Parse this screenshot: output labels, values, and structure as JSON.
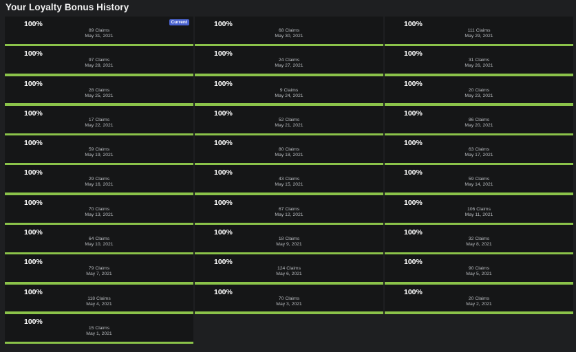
{
  "page": {
    "title": "Your Loyalty Bonus History"
  },
  "colors": {
    "background": "#1e1f21",
    "card": "#151617",
    "progress_fill": "#8bc34a",
    "badge": "#4a63d0"
  },
  "history": [
    {
      "percent": "100%",
      "claims": "89 Claims",
      "date": "May 31, 2021",
      "badge": "Current",
      "progress": 1.0
    },
    {
      "percent": "100%",
      "claims": "68 Claims",
      "date": "May 30, 2021",
      "progress": 1.0
    },
    {
      "percent": "100%",
      "claims": "111 Claims",
      "date": "May 29, 2021",
      "progress": 1.0
    },
    {
      "percent": "100%",
      "claims": "97 Claims",
      "date": "May 28, 2021",
      "progress": 1.0
    },
    {
      "percent": "100%",
      "claims": "24 Claims",
      "date": "May 27, 2021",
      "progress": 1.0
    },
    {
      "percent": "100%",
      "claims": "31 Claims",
      "date": "May 26, 2021",
      "progress": 1.0
    },
    {
      "percent": "100%",
      "claims": "28 Claims",
      "date": "May 25, 2021",
      "progress": 1.0
    },
    {
      "percent": "100%",
      "claims": "9 Claims",
      "date": "May 24, 2021",
      "progress": 1.0
    },
    {
      "percent": "100%",
      "claims": "20 Claims",
      "date": "May 23, 2021",
      "progress": 1.0
    },
    {
      "percent": "100%",
      "claims": "17 Claims",
      "date": "May 22, 2021",
      "progress": 1.0
    },
    {
      "percent": "100%",
      "claims": "52 Claims",
      "date": "May 21, 2021",
      "progress": 1.0
    },
    {
      "percent": "100%",
      "claims": "86 Claims",
      "date": "May 20, 2021",
      "progress": 1.0
    },
    {
      "percent": "100%",
      "claims": "59 Claims",
      "date": "May 19, 2021",
      "progress": 1.0
    },
    {
      "percent": "100%",
      "claims": "80 Claims",
      "date": "May 18, 2021",
      "progress": 1.0
    },
    {
      "percent": "100%",
      "claims": "63 Claims",
      "date": "May 17, 2021",
      "progress": 1.0
    },
    {
      "percent": "100%",
      "claims": "29 Claims",
      "date": "May 16, 2021",
      "progress": 1.0
    },
    {
      "percent": "100%",
      "claims": "43 Claims",
      "date": "May 15, 2021",
      "progress": 1.0
    },
    {
      "percent": "100%",
      "claims": "59 Claims",
      "date": "May 14, 2021",
      "progress": 1.0
    },
    {
      "percent": "100%",
      "claims": "70 Claims",
      "date": "May 13, 2021",
      "progress": 1.0
    },
    {
      "percent": "100%",
      "claims": "67 Claims",
      "date": "May 12, 2021",
      "progress": 1.0
    },
    {
      "percent": "100%",
      "claims": "106 Claims",
      "date": "May 11, 2021",
      "progress": 1.0
    },
    {
      "percent": "100%",
      "claims": "64 Claims",
      "date": "May 10, 2021",
      "progress": 1.0
    },
    {
      "percent": "100%",
      "claims": "18 Claims",
      "date": "May 9, 2021",
      "progress": 1.0
    },
    {
      "percent": "100%",
      "claims": "32 Claims",
      "date": "May 8, 2021",
      "progress": 1.0
    },
    {
      "percent": "100%",
      "claims": "79 Claims",
      "date": "May 7, 2021",
      "progress": 1.0
    },
    {
      "percent": "100%",
      "claims": "124 Claims",
      "date": "May 6, 2021",
      "progress": 1.0
    },
    {
      "percent": "100%",
      "claims": "90 Claims",
      "date": "May 5, 2021",
      "progress": 1.0
    },
    {
      "percent": "100%",
      "claims": "118 Claims",
      "date": "May 4, 2021",
      "progress": 1.0
    },
    {
      "percent": "100%",
      "claims": "70 Claims",
      "date": "May 3, 2021",
      "progress": 1.0
    },
    {
      "percent": "100%",
      "claims": "20 Claims",
      "date": "May 2, 2021",
      "progress": 1.0
    },
    {
      "percent": "100%",
      "claims": "15 Claims",
      "date": "May 1, 2021",
      "progress": 1.0
    }
  ]
}
